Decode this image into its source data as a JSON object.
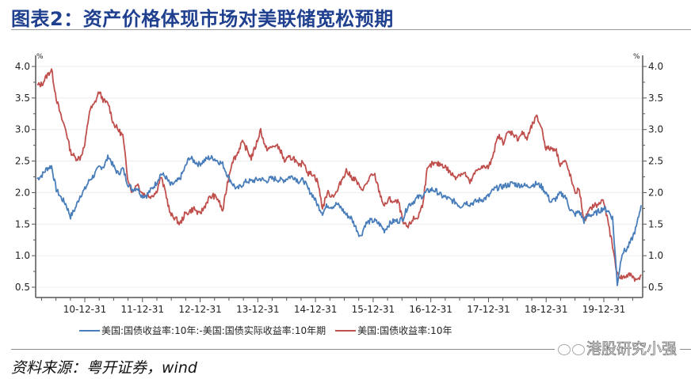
{
  "header": {
    "title": "图表2：资产价格体现市场对美联储宽松预期"
  },
  "legend": {
    "items": [
      {
        "label": "美国:国债收益率:10年:-美国:国债实际收益率:10年期",
        "color": "#4a7ebb"
      },
      {
        "label": "美国:国债收益率:10年",
        "color": "#c0504d"
      }
    ]
  },
  "footer": {
    "source": "资料来源：粤开证券，wind",
    "watermark": "港股研究小强"
  },
  "axes": {
    "left_unit": "%",
    "right_unit": "%"
  },
  "chart_data": {
    "type": "line",
    "title": "图表2：资产价格体现市场对美联储宽松预期",
    "xlabel": "",
    "ylabel": "%",
    "ylabel_right": "%",
    "ylim": [
      0.35,
      4.15
    ],
    "yticks": [
      0.5,
      1.0,
      1.5,
      2.0,
      2.5,
      3.0,
      3.5,
      4.0
    ],
    "ytick_labels": [
      "0.5",
      "1.0",
      "1.5",
      "2.0",
      "2.5",
      "3.0",
      "3.5",
      "4.0"
    ],
    "xtick_labels": [
      "10-12-31",
      "11-12-31",
      "12-12-31",
      "13-12-31",
      "14-12-31",
      "15-12-31",
      "16-12-31",
      "17-12-31",
      "18-12-31",
      "19-12-31"
    ],
    "grid": true,
    "legend_position": "bottom",
    "x_start": "2010-01",
    "x_end": "2020-08",
    "x": [
      "2010-01",
      "2010-02",
      "2010-03",
      "2010-04",
      "2010-05",
      "2010-06",
      "2010-07",
      "2010-08",
      "2010-09",
      "2010-10",
      "2010-11",
      "2010-12",
      "2011-01",
      "2011-02",
      "2011-03",
      "2011-04",
      "2011-05",
      "2011-06",
      "2011-07",
      "2011-08",
      "2011-09",
      "2011-10",
      "2011-11",
      "2011-12",
      "2012-01",
      "2012-02",
      "2012-03",
      "2012-04",
      "2012-05",
      "2012-06",
      "2012-07",
      "2012-08",
      "2012-09",
      "2012-10",
      "2012-11",
      "2012-12",
      "2013-01",
      "2013-02",
      "2013-03",
      "2013-04",
      "2013-05",
      "2013-06",
      "2013-07",
      "2013-08",
      "2013-09",
      "2013-10",
      "2013-11",
      "2013-12",
      "2014-01",
      "2014-02",
      "2014-03",
      "2014-04",
      "2014-05",
      "2014-06",
      "2014-07",
      "2014-08",
      "2014-09",
      "2014-10",
      "2014-11",
      "2014-12",
      "2015-01",
      "2015-02",
      "2015-03",
      "2015-04",
      "2015-05",
      "2015-06",
      "2015-07",
      "2015-08",
      "2015-09",
      "2015-10",
      "2015-11",
      "2015-12",
      "2016-01",
      "2016-02",
      "2016-03",
      "2016-04",
      "2016-05",
      "2016-06",
      "2016-07",
      "2016-08",
      "2016-09",
      "2016-10",
      "2016-11",
      "2016-12",
      "2017-01",
      "2017-02",
      "2017-03",
      "2017-04",
      "2017-05",
      "2017-06",
      "2017-07",
      "2017-08",
      "2017-09",
      "2017-10",
      "2017-11",
      "2017-12",
      "2018-01",
      "2018-02",
      "2018-03",
      "2018-04",
      "2018-05",
      "2018-06",
      "2018-07",
      "2018-08",
      "2018-09",
      "2018-10",
      "2018-11",
      "2018-12",
      "2019-01",
      "2019-02",
      "2019-03",
      "2019-04",
      "2019-05",
      "2019-06",
      "2019-07",
      "2019-08",
      "2019-09",
      "2019-10",
      "2019-11",
      "2019-12",
      "2020-01",
      "2020-02",
      "2020-03",
      "2020-04",
      "2020-05",
      "2020-06",
      "2020-07",
      "2020-08"
    ],
    "series": [
      {
        "name": "美国:国债收益率:10年:-美国:国债实际收益率:10年期",
        "axis": "left",
        "color": "#4a7ebb",
        "values": [
          2.22,
          2.28,
          2.38,
          2.42,
          2.05,
          1.92,
          1.82,
          1.62,
          1.75,
          1.95,
          2.05,
          2.2,
          2.28,
          2.4,
          2.42,
          2.58,
          2.42,
          2.3,
          2.38,
          2.15,
          2.05,
          2.08,
          1.95,
          1.96,
          2.05,
          2.15,
          2.3,
          2.25,
          2.12,
          2.15,
          2.22,
          2.38,
          2.56,
          2.5,
          2.45,
          2.5,
          2.55,
          2.55,
          2.5,
          2.45,
          2.28,
          2.15,
          2.05,
          2.12,
          2.18,
          2.18,
          2.2,
          2.22,
          2.18,
          2.22,
          2.22,
          2.2,
          2.2,
          2.25,
          2.25,
          2.18,
          2.2,
          2.05,
          1.95,
          1.8,
          1.68,
          1.8,
          1.78,
          1.82,
          1.75,
          1.65,
          1.6,
          1.45,
          1.3,
          1.5,
          1.55,
          1.55,
          1.5,
          1.4,
          1.5,
          1.55,
          1.55,
          1.6,
          1.8,
          1.85,
          1.92,
          1.95,
          2.02,
          2.05,
          2.02,
          1.95,
          1.92,
          1.88,
          1.85,
          1.78,
          1.85,
          1.82,
          1.85,
          1.88,
          1.9,
          1.95,
          2.05,
          2.08,
          2.1,
          2.12,
          2.15,
          2.12,
          2.12,
          2.1,
          2.12,
          2.14,
          2.1,
          2.0,
          1.85,
          1.9,
          1.98,
          1.95,
          1.75,
          1.65,
          1.7,
          1.55,
          1.65,
          1.65,
          1.7,
          1.75,
          1.72,
          1.6,
          0.55,
          1.05,
          1.1,
          1.25,
          1.45,
          1.8
        ]
      },
      {
        "name": "美国:国债收益率:10年",
        "axis": "left",
        "color": "#c0504d",
        "values": [
          3.7,
          3.72,
          3.85,
          3.95,
          3.5,
          3.2,
          3.0,
          2.65,
          2.55,
          2.55,
          2.75,
          3.3,
          3.4,
          3.6,
          3.45,
          3.4,
          3.1,
          3.0,
          2.9,
          2.25,
          2.0,
          2.15,
          2.0,
          1.95,
          1.95,
          2.0,
          2.25,
          2.0,
          1.65,
          1.6,
          1.5,
          1.65,
          1.7,
          1.75,
          1.65,
          1.75,
          1.9,
          1.95,
          1.9,
          1.7,
          2.15,
          2.5,
          2.6,
          2.8,
          2.7,
          2.55,
          2.75,
          3.0,
          2.7,
          2.7,
          2.75,
          2.7,
          2.5,
          2.55,
          2.55,
          2.4,
          2.5,
          2.3,
          2.3,
          2.17,
          1.75,
          2.0,
          1.95,
          2.0,
          2.2,
          2.35,
          2.25,
          2.2,
          2.05,
          2.1,
          2.25,
          2.27,
          2.0,
          1.78,
          1.9,
          1.85,
          1.85,
          1.5,
          1.45,
          1.58,
          1.6,
          1.8,
          2.35,
          2.45,
          2.45,
          2.45,
          2.4,
          2.3,
          2.25,
          2.3,
          2.3,
          2.15,
          2.3,
          2.4,
          2.4,
          2.4,
          2.65,
          2.9,
          2.8,
          2.95,
          2.95,
          2.85,
          2.95,
          2.85,
          3.05,
          3.2,
          3.05,
          2.7,
          2.7,
          2.7,
          2.45,
          2.5,
          2.3,
          2.0,
          2.05,
          1.55,
          1.7,
          1.8,
          1.8,
          1.9,
          1.55,
          1.15,
          0.7,
          0.65,
          0.68,
          0.7,
          0.6,
          0.7
        ]
      }
    ]
  }
}
